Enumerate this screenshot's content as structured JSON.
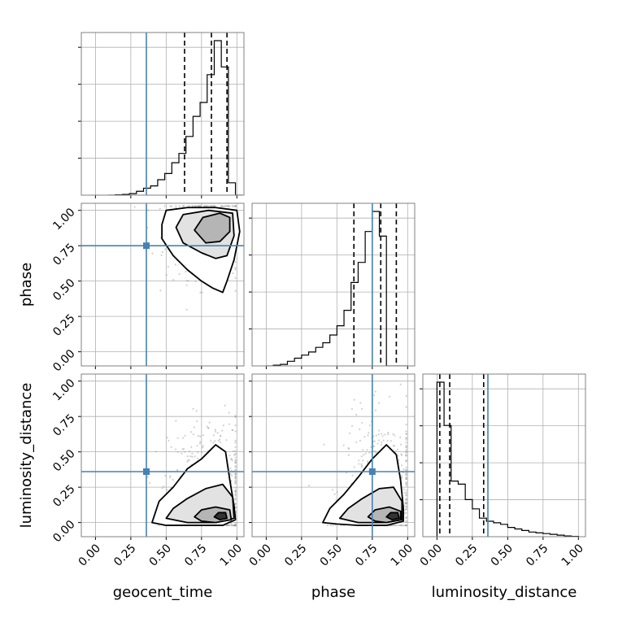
{
  "chart_data": {
    "type": "corner",
    "parameters": [
      "geocent_time",
      "phase",
      "luminosity_distance"
    ],
    "tick_values": [
      0.0,
      0.25,
      0.5,
      0.75,
      1.0
    ],
    "tick_labels": [
      "0.00",
      "0.25",
      "0.50",
      "0.75",
      "1.00"
    ],
    "axis_range": [
      -0.1,
      1.05
    ],
    "truths": [
      0.36,
      0.75,
      0.36
    ],
    "quantiles": [
      [
        0.63,
        0.82,
        0.93
      ],
      [
        0.62,
        0.81,
        0.92
      ],
      [
        0.02,
        0.09,
        0.33
      ]
    ],
    "histograms": [
      {
        "parameter": "geocent_time",
        "bin_edges": [
          0.09,
          0.14,
          0.19,
          0.24,
          0.29,
          0.34,
          0.39,
          0.44,
          0.49,
          0.54,
          0.59,
          0.64,
          0.69,
          0.74,
          0.79,
          0.84,
          0.89,
          0.94,
          0.99,
          1.04
        ],
        "counts": [
          0.0,
          0.002,
          0.005,
          0.01,
          0.025,
          0.045,
          0.06,
          0.1,
          0.14,
          0.21,
          0.27,
          0.38,
          0.51,
          0.6,
          0.78,
          1.0,
          0.83,
          0.08,
          0.0
        ]
      },
      {
        "parameter": "phase",
        "bin_edges": [
          0.0,
          0.05,
          0.1,
          0.15,
          0.2,
          0.25,
          0.3,
          0.35,
          0.4,
          0.45,
          0.5,
          0.55,
          0.6,
          0.65,
          0.7,
          0.75,
          0.8,
          0.85,
          0.9,
          0.95,
          1.0
        ],
        "counts": [
          0.0,
          0.005,
          0.01,
          0.03,
          0.05,
          0.07,
          0.09,
          0.12,
          0.15,
          0.2,
          0.26,
          0.36,
          0.54,
          0.67,
          0.87,
          1.0,
          0.84,
          0.0,
          0.0,
          0.0
        ]
      },
      {
        "parameter": "luminosity_distance",
        "bin_edges": [
          0.0,
          0.05,
          0.1,
          0.15,
          0.2,
          0.25,
          0.3,
          0.35,
          0.4,
          0.45,
          0.5,
          0.55,
          0.6,
          0.65,
          0.7,
          0.75,
          0.8,
          0.85,
          0.9,
          0.95,
          1.0
        ],
        "counts": [
          1.0,
          0.72,
          0.36,
          0.34,
          0.24,
          0.18,
          0.12,
          0.1,
          0.09,
          0.08,
          0.06,
          0.05,
          0.04,
          0.03,
          0.025,
          0.02,
          0.015,
          0.01,
          0.005,
          0.002
        ]
      }
    ],
    "scatter_clouds": [
      {
        "x": "geocent_time",
        "y": "phase",
        "mean": [
          0.8,
          0.84
        ],
        "sd": [
          0.15,
          0.16
        ],
        "count": 500
      },
      {
        "x": "geocent_time",
        "y": "luminosity_distance",
        "mean": [
          0.82,
          0.22
        ],
        "sd": [
          0.15,
          0.26
        ],
        "count": 500
      },
      {
        "x": "phase",
        "y": "luminosity_distance",
        "mean": [
          0.83,
          0.22
        ],
        "sd": [
          0.14,
          0.26
        ],
        "count": 500
      }
    ],
    "density_contours": [
      {
        "x": "geocent_time",
        "y": "phase",
        "levels": [
          [
            [
              0.47,
              0.9
            ],
            [
              0.5,
              1.0
            ],
            [
              0.65,
              1.02
            ],
            [
              0.85,
              1.02
            ],
            [
              1.0,
              1.0
            ],
            [
              1.02,
              0.85
            ],
            [
              0.98,
              0.65
            ],
            [
              0.93,
              0.5
            ],
            [
              0.9,
              0.42
            ],
            [
              0.83,
              0.45
            ],
            [
              0.75,
              0.5
            ],
            [
              0.65,
              0.58
            ],
            [
              0.55,
              0.68
            ],
            [
              0.47,
              0.8
            ]
          ],
          [
            [
              0.57,
              0.88
            ],
            [
              0.62,
              0.97
            ],
            [
              0.8,
              1.0
            ],
            [
              0.97,
              0.98
            ],
            [
              0.98,
              0.82
            ],
            [
              0.93,
              0.68
            ],
            [
              0.85,
              0.66
            ],
            [
              0.75,
              0.7
            ],
            [
              0.62,
              0.77
            ]
          ],
          [
            [
              0.7,
              0.86
            ],
            [
              0.76,
              0.95
            ],
            [
              0.88,
              0.98
            ],
            [
              0.95,
              0.95
            ],
            [
              0.95,
              0.85
            ],
            [
              0.88,
              0.78
            ],
            [
              0.78,
              0.77
            ]
          ]
        ]
      },
      {
        "x": "geocent_time",
        "y": "luminosity_distance",
        "levels": [
          [
            [
              0.4,
              0.0
            ],
            [
              0.45,
              0.15
            ],
            [
              0.55,
              0.25
            ],
            [
              0.65,
              0.38
            ],
            [
              0.75,
              0.45
            ],
            [
              0.85,
              0.55
            ],
            [
              0.92,
              0.5
            ],
            [
              0.95,
              0.3
            ],
            [
              0.98,
              0.12
            ],
            [
              0.99,
              0.02
            ],
            [
              0.9,
              -0.02
            ],
            [
              0.7,
              -0.02
            ],
            [
              0.5,
              -0.02
            ]
          ],
          [
            [
              0.5,
              0.03
            ],
            [
              0.55,
              0.1
            ],
            [
              0.65,
              0.17
            ],
            [
              0.78,
              0.24
            ],
            [
              0.9,
              0.27
            ],
            [
              0.97,
              0.18
            ],
            [
              0.98,
              0.03
            ],
            [
              0.85,
              0.0
            ],
            [
              0.65,
              0.0
            ]
          ],
          [
            [
              0.7,
              0.04
            ],
            [
              0.75,
              0.09
            ],
            [
              0.85,
              0.11
            ],
            [
              0.95,
              0.09
            ],
            [
              0.96,
              0.02
            ],
            [
              0.85,
              0.0
            ],
            [
              0.75,
              0.01
            ]
          ],
          [
            [
              0.84,
              0.04
            ],
            [
              0.87,
              0.07
            ],
            [
              0.92,
              0.07
            ],
            [
              0.93,
              0.03
            ],
            [
              0.88,
              0.02
            ]
          ]
        ]
      },
      {
        "x": "phase",
        "y": "luminosity_distance",
        "levels": [
          [
            [
              0.4,
              0.0
            ],
            [
              0.45,
              0.1
            ],
            [
              0.55,
              0.2
            ],
            [
              0.65,
              0.32
            ],
            [
              0.75,
              0.45
            ],
            [
              0.85,
              0.55
            ],
            [
              0.92,
              0.48
            ],
            [
              0.95,
              0.3
            ],
            [
              0.97,
              0.1
            ],
            [
              0.97,
              0.01
            ],
            [
              0.85,
              -0.02
            ],
            [
              0.65,
              -0.02
            ],
            [
              0.5,
              -0.01
            ]
          ],
          [
            [
              0.52,
              0.03
            ],
            [
              0.58,
              0.1
            ],
            [
              0.68,
              0.17
            ],
            [
              0.8,
              0.24
            ],
            [
              0.9,
              0.25
            ],
            [
              0.96,
              0.15
            ],
            [
              0.96,
              0.02
            ],
            [
              0.85,
              0.0
            ],
            [
              0.65,
              0.0
            ]
          ],
          [
            [
              0.72,
              0.04
            ],
            [
              0.77,
              0.09
            ],
            [
              0.87,
              0.11
            ],
            [
              0.95,
              0.08
            ],
            [
              0.95,
              0.02
            ],
            [
              0.85,
              0.0
            ],
            [
              0.77,
              0.01
            ]
          ],
          [
            [
              0.85,
              0.04
            ],
            [
              0.88,
              0.07
            ],
            [
              0.93,
              0.07
            ],
            [
              0.94,
              0.03
            ],
            [
              0.89,
              0.02
            ]
          ]
        ]
      }
    ],
    "grid": true,
    "colors": {
      "truth": "#4682b4",
      "histogram": "#000000",
      "quantile": "#000000",
      "grid": "#b0b0b0",
      "scatter": "#9a9a9a",
      "axes": "#808080"
    }
  }
}
